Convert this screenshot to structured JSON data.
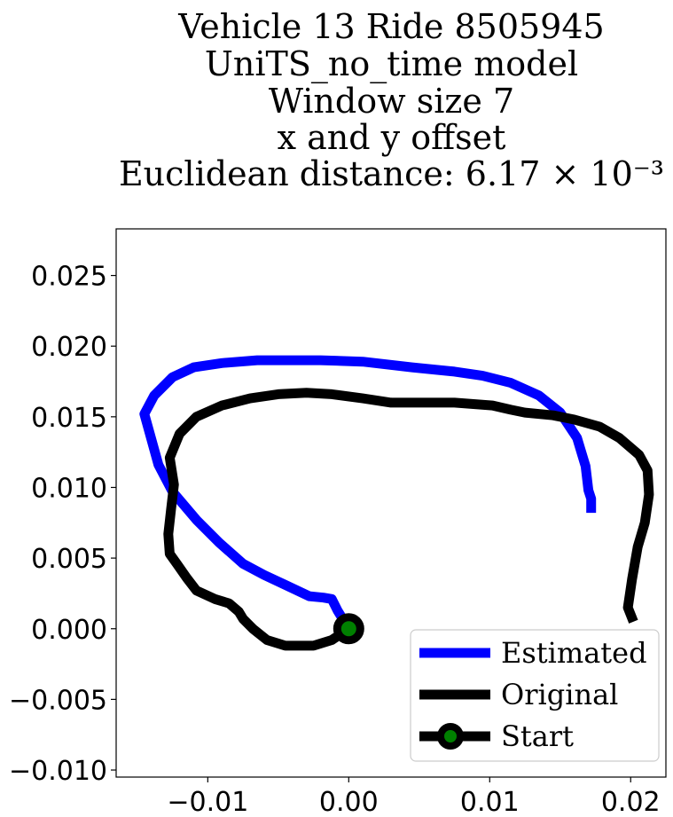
{
  "title_lines": [
    "Vehicle 13 Ride 8505945",
    "UniTS_no_time model",
    "Window size 7",
    "x and y offset",
    "Euclidean distance: 6.17 × 10⁻³"
  ],
  "chart_data": {
    "type": "line",
    "title": "Vehicle 13 Ride 8505945 / UniTS_no_time model / Window size 7 / x and y offset / Euclidean distance: 6.17 × 10^-3",
    "xlabel": "",
    "ylabel": "",
    "xlim": [
      -0.0165,
      0.0225
    ],
    "ylim": [
      -0.0105,
      0.0283
    ],
    "x_ticks": [
      {
        "value": -0.01,
        "label": "−0.01"
      },
      {
        "value": 0.0,
        "label": "0.00"
      },
      {
        "value": 0.01,
        "label": "0.01"
      },
      {
        "value": 0.02,
        "label": "0.02"
      }
    ],
    "y_ticks": [
      {
        "value": -0.01,
        "label": "−0.010"
      },
      {
        "value": -0.005,
        "label": "−0.005"
      },
      {
        "value": 0.0,
        "label": "0.000"
      },
      {
        "value": 0.005,
        "label": "0.005"
      },
      {
        "value": 0.01,
        "label": "0.010"
      },
      {
        "value": 0.015,
        "label": "0.015"
      },
      {
        "value": 0.02,
        "label": "0.020"
      },
      {
        "value": 0.025,
        "label": "0.025"
      }
    ],
    "grid": false,
    "legend_position": "bottom-right",
    "series": [
      {
        "name": "Estimated",
        "color": "#0000ff",
        "points": [
          [
            0.0,
            0.0
          ],
          [
            -0.0008,
            0.0013
          ],
          [
            -0.0012,
            0.0021
          ],
          [
            -0.0018,
            0.0022
          ],
          [
            -0.0028,
            0.0023
          ],
          [
            -0.0045,
            0.0031
          ],
          [
            -0.006,
            0.0038
          ],
          [
            -0.0075,
            0.0046
          ],
          [
            -0.0092,
            0.0061
          ],
          [
            -0.0108,
            0.0077
          ],
          [
            -0.0125,
            0.0097
          ],
          [
            -0.0135,
            0.0116
          ],
          [
            -0.0145,
            0.0152
          ],
          [
            -0.0138,
            0.0165
          ],
          [
            -0.0125,
            0.0178
          ],
          [
            -0.011,
            0.0185
          ],
          [
            -0.009,
            0.0188
          ],
          [
            -0.0065,
            0.019
          ],
          [
            -0.004,
            0.019
          ],
          [
            -0.002,
            0.019
          ],
          [
            0.001,
            0.0189
          ],
          [
            0.0045,
            0.0185
          ],
          [
            0.0075,
            0.0182
          ],
          [
            0.0095,
            0.0179
          ],
          [
            0.0115,
            0.0174
          ],
          [
            0.0135,
            0.0165
          ],
          [
            0.015,
            0.0153
          ],
          [
            0.0162,
            0.0135
          ],
          [
            0.0168,
            0.0115
          ],
          [
            0.017,
            0.0098
          ],
          [
            0.0172,
            0.0092
          ],
          [
            0.0172,
            0.0082
          ]
        ]
      },
      {
        "name": "Original",
        "color": "#000000",
        "points": [
          [
            0.0,
            0.0
          ],
          [
            -0.0012,
            -0.0008
          ],
          [
            -0.0025,
            -0.0012
          ],
          [
            -0.0045,
            -0.0012
          ],
          [
            -0.0058,
            -0.0008
          ],
          [
            -0.0068,
            0.0
          ],
          [
            -0.0075,
            0.0007
          ],
          [
            -0.0078,
            0.0012
          ],
          [
            -0.0085,
            0.0018
          ],
          [
            -0.0095,
            0.0021
          ],
          [
            -0.0108,
            0.0027
          ],
          [
            -0.0115,
            0.0036
          ],
          [
            -0.0122,
            0.0046
          ],
          [
            -0.0127,
            0.0053
          ],
          [
            -0.0128,
            0.0067
          ],
          [
            -0.0126,
            0.0085
          ],
          [
            -0.0124,
            0.0102
          ],
          [
            -0.0127,
            0.0121
          ],
          [
            -0.012,
            0.0138
          ],
          [
            -0.0108,
            0.015
          ],
          [
            -0.009,
            0.0158
          ],
          [
            -0.007,
            0.0163
          ],
          [
            -0.005,
            0.0166
          ],
          [
            -0.003,
            0.0167
          ],
          [
            -0.0012,
            0.0166
          ],
          [
            0.001,
            0.0163
          ],
          [
            0.003,
            0.016
          ],
          [
            0.005,
            0.016
          ],
          [
            0.0075,
            0.016
          ],
          [
            0.0102,
            0.0158
          ],
          [
            0.0115,
            0.0155
          ],
          [
            0.0125,
            0.0153
          ],
          [
            0.0145,
            0.0151
          ],
          [
            0.016,
            0.0148
          ],
          [
            0.0178,
            0.0143
          ],
          [
            0.0192,
            0.0135
          ],
          [
            0.0206,
            0.0123
          ],
          [
            0.0212,
            0.0112
          ],
          [
            0.0213,
            0.0095
          ],
          [
            0.021,
            0.0075
          ],
          [
            0.0205,
            0.0058
          ],
          [
            0.0201,
            0.0035
          ],
          [
            0.0198,
            0.0015
          ],
          [
            0.0202,
            0.0005
          ]
        ]
      }
    ],
    "start_marker": {
      "name": "Start",
      "x": 0.0,
      "y": 0.0,
      "face_color": "#008000",
      "edge_color": "#000000"
    }
  }
}
